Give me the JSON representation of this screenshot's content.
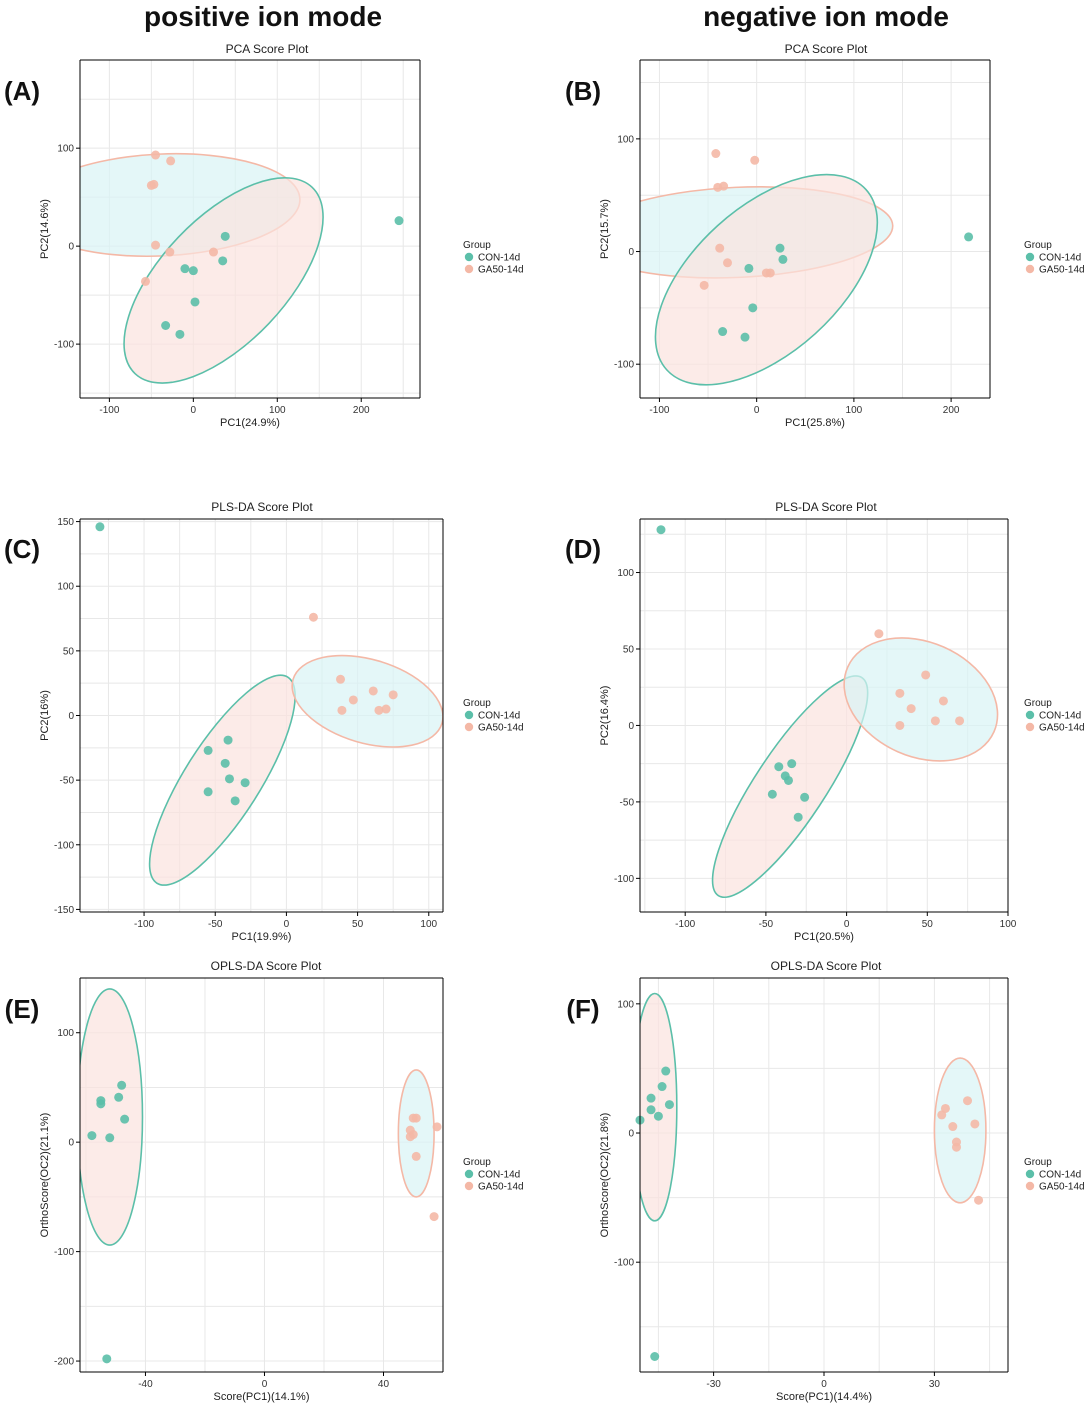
{
  "column_headers": [
    "positive ion mode",
    "negative ion mode"
  ],
  "colors": {
    "con": "#5bbfa9",
    "ga50": "#f4b8a6",
    "con_fill": "#d9f3f5",
    "ga50_fill": "#fbe3de",
    "grid": "#e8e8e8"
  },
  "chart_data": [
    {
      "type": "scatter",
      "panel_label": "(A)",
      "title": "PCA Score Plot",
      "xlabel": "PC1(24.9%)",
      "ylabel": "PC2(14.6%)",
      "xlim": [
        -135,
        270
      ],
      "ylim": [
        -155,
        190
      ],
      "xticks": [
        -100,
        0,
        100,
        200
      ],
      "yticks": [
        -100,
        0,
        100
      ],
      "legend": {
        "title": "Group",
        "entries": [
          "CON-14d",
          "GA50-14d"
        ],
        "position": "right"
      },
      "series": [
        {
          "name": "CON-14d",
          "points": [
            [
              -10,
              -23
            ],
            [
              0,
              -25
            ],
            [
              35,
              -15
            ],
            [
              38,
              10
            ],
            [
              2,
              -57
            ],
            [
              -33,
              -81
            ],
            [
              -16,
              -90
            ],
            [
              245,
              26
            ]
          ]
        },
        {
          "name": "GA50-14d",
          "points": [
            [
              -45,
              93
            ],
            [
              -27,
              87
            ],
            [
              -50,
              62
            ],
            [
              -47,
              63
            ],
            [
              -45,
              1
            ],
            [
              -28,
              -6
            ],
            [
              -57,
              -36
            ],
            [
              24,
              -6
            ]
          ]
        }
      ],
      "ellipses": [
        {
          "group": "GA50-14d",
          "fill": "CON-14d",
          "center": [
            -38,
            42
          ],
          "radius": [
            52,
            165
          ],
          "angle": 93
        },
        {
          "group": "CON-14d",
          "fill": "GA50-14d",
          "center": [
            36,
            -35
          ],
          "radius": [
            142,
            68
          ],
          "angle": 42
        }
      ]
    },
    {
      "type": "scatter",
      "panel_label": "(B)",
      "title": "PCA Score Plot",
      "xlabel": "PC1(25.8%)",
      "ylabel": "PC2(15.7%)",
      "xlim": [
        -120,
        240
      ],
      "ylim": [
        -130,
        170
      ],
      "xticks": [
        -100,
        0,
        100,
        200
      ],
      "yticks": [
        -100,
        0,
        100
      ],
      "legend": {
        "title": "Group",
        "entries": [
          "CON-14d",
          "GA50-14d"
        ],
        "position": "right"
      },
      "series": [
        {
          "name": "CON-14d",
          "points": [
            [
              -8,
              -15
            ],
            [
              24,
              3
            ],
            [
              27,
              -7
            ],
            [
              -4,
              -50
            ],
            [
              -35,
              -71
            ],
            [
              -12,
              -76
            ],
            [
              218,
              13
            ]
          ]
        },
        {
          "name": "GA50-14d",
          "points": [
            [
              -42,
              87
            ],
            [
              -2,
              81
            ],
            [
              -40,
              57
            ],
            [
              -34,
              58
            ],
            [
              -38,
              3
            ],
            [
              -30,
              -10
            ],
            [
              -54,
              -30
            ],
            [
              10,
              -19
            ],
            [
              14,
              -19
            ]
          ]
        }
      ],
      "ellipses": [
        {
          "group": "GA50-14d",
          "fill": "CON-14d",
          "center": [
            -20,
            17
          ],
          "radius": [
            40,
            160
          ],
          "angle": 93
        },
        {
          "group": "CON-14d",
          "fill": "GA50-14d",
          "center": [
            10,
            -25
          ],
          "radius": [
            130,
            68
          ],
          "angle": 38
        }
      ]
    },
    {
      "type": "scatter",
      "panel_label": "(C)",
      "title": "PLS-DA Score Plot",
      "xlabel": "PC1(19.9%)",
      "ylabel": "PC2(16%)",
      "xlim": [
        -145,
        110
      ],
      "ylim": [
        -152,
        152
      ],
      "xticks": [
        -100,
        -50,
        0,
        50,
        100
      ],
      "yticks": [
        -150,
        -100,
        -50,
        0,
        50,
        100,
        150
      ],
      "legend": {
        "title": "Group",
        "entries": [
          "CON-14d",
          "GA50-14d"
        ],
        "position": "right"
      },
      "series": [
        {
          "name": "CON-14d",
          "points": [
            [
              -131,
              146
            ],
            [
              -55,
              -27
            ],
            [
              -41,
              -19
            ],
            [
              -43,
              -37
            ],
            [
              -40,
              -49
            ],
            [
              -29,
              -52
            ],
            [
              -55,
              -59
            ],
            [
              -36,
              -66
            ]
          ]
        },
        {
          "name": "GA50-14d",
          "points": [
            [
              19,
              76
            ],
            [
              38,
              28
            ],
            [
              61,
              19
            ],
            [
              75,
              16
            ],
            [
              47,
              12
            ],
            [
              70,
              5
            ],
            [
              65,
              4
            ],
            [
              39,
              4
            ]
          ]
        }
      ],
      "ellipses": [
        {
          "group": "CON-14d",
          "fill": "GA50-14d",
          "center": [
            -45,
            -50
          ],
          "radius": [
            92,
            27
          ],
          "angle": 60
        },
        {
          "group": "GA50-14d",
          "fill": "CON-14d",
          "center": [
            57,
            11
          ],
          "radius": [
            55,
            32
          ],
          "angle": -18
        }
      ]
    },
    {
      "type": "scatter",
      "panel_label": "(D)",
      "title": "PLS-DA Score Plot",
      "xlabel": "PC1(20.5%)",
      "ylabel": "PC2(16.4%)",
      "xlim": [
        -128,
        100
      ],
      "ylim": [
        -122,
        135
      ],
      "xticks": [
        -100,
        -50,
        0,
        50,
        100
      ],
      "yticks": [
        -100,
        -50,
        0,
        50,
        100
      ],
      "legend": {
        "title": "Group",
        "entries": [
          "CON-14d",
          "GA50-14d"
        ],
        "position": "right"
      },
      "series": [
        {
          "name": "CON-14d",
          "points": [
            [
              -115,
              128
            ],
            [
              -42,
              -27
            ],
            [
              -34,
              -25
            ],
            [
              -38,
              -33
            ],
            [
              -36,
              -36
            ],
            [
              -46,
              -45
            ],
            [
              -26,
              -47
            ],
            [
              -30,
              -60
            ]
          ]
        },
        {
          "name": "GA50-14d",
          "points": [
            [
              20,
              60
            ],
            [
              49,
              33
            ],
            [
              33,
              21
            ],
            [
              60,
              16
            ],
            [
              40,
              11
            ],
            [
              55,
              3
            ],
            [
              70,
              3
            ],
            [
              33,
              0
            ]
          ]
        }
      ],
      "ellipses": [
        {
          "group": "CON-14d",
          "fill": "GA50-14d",
          "center": [
            -35,
            -40
          ],
          "radius": [
            84,
            22
          ],
          "angle": 58
        },
        {
          "group": "GA50-14d",
          "fill": "CON-14d",
          "center": [
            46,
            17
          ],
          "radius": [
            50,
            37
          ],
          "angle": -25
        }
      ]
    },
    {
      "type": "scatter",
      "panel_label": "(E)",
      "title": "OPLS-DA Score Plot",
      "xlabel": "Score(PC1)(14.1%)",
      "ylabel": "OrthoScore(OC2)(21.1%)",
      "xlim": [
        -62,
        60
      ],
      "ylim": [
        -210,
        150
      ],
      "xticks": [
        -40,
        0,
        40
      ],
      "yticks": [
        -200,
        -100,
        0,
        100
      ],
      "legend": {
        "title": "Group",
        "entries": [
          "CON-14d",
          "GA50-14d"
        ],
        "position": "right"
      },
      "series": [
        {
          "name": "CON-14d",
          "points": [
            [
              -48,
              52
            ],
            [
              -49,
              41
            ],
            [
              -55,
              38
            ],
            [
              -55,
              35
            ],
            [
              -47,
              21
            ],
            [
              -58,
              6
            ],
            [
              -52,
              4
            ],
            [
              -53,
              -198
            ]
          ]
        },
        {
          "name": "GA50-14d",
          "points": [
            [
              50,
              22
            ],
            [
              51,
              22
            ],
            [
              49,
              11
            ],
            [
              50,
              7
            ],
            [
              49,
              5
            ],
            [
              51,
              -13
            ],
            [
              58,
              14
            ],
            [
              57,
              -68
            ]
          ]
        }
      ],
      "ellipses": [
        {
          "group": "CON-14d",
          "fill": "GA50-14d",
          "center": [
            -52,
            23
          ],
          "radius": [
            11,
            117
          ],
          "angle": 0
        },
        {
          "group": "GA50-14d",
          "fill": "CON-14d",
          "center": [
            51,
            8
          ],
          "radius": [
            6,
            58
          ],
          "angle": 0
        }
      ]
    },
    {
      "type": "scatter",
      "panel_label": "(F)",
      "title": "OPLS-DA Score Plot",
      "xlabel": "Score(PC1)(14.4%)",
      "ylabel": "OrthoScore(OC2)(21.8%)",
      "xlim": [
        -50,
        50
      ],
      "ylim": [
        -185,
        120
      ],
      "xticks": [
        -30,
        0,
        30
      ],
      "yticks": [
        -100,
        0,
        100
      ],
      "legend": {
        "title": "Group",
        "entries": [
          "CON-14d",
          "GA50-14d"
        ],
        "position": "right"
      },
      "series": [
        {
          "name": "CON-14d",
          "points": [
            [
              -43,
              48
            ],
            [
              -44,
              36
            ],
            [
              -47,
              27
            ],
            [
              -42,
              22
            ],
            [
              -47,
              18
            ],
            [
              -45,
              13
            ],
            [
              -50,
              10
            ],
            [
              -46,
              -173
            ]
          ]
        },
        {
          "name": "GA50-14d",
          "points": [
            [
              39,
              25
            ],
            [
              33,
              19
            ],
            [
              32,
              14
            ],
            [
              35,
              5
            ],
            [
              41,
              7
            ],
            [
              36,
              -7
            ],
            [
              36,
              -11
            ],
            [
              42,
              -52
            ]
          ]
        }
      ],
      "ellipses": [
        {
          "group": "CON-14d",
          "fill": "GA50-14d",
          "center": [
            -46,
            20
          ],
          "radius": [
            6,
            88
          ],
          "angle": 0
        },
        {
          "group": "GA50-14d",
          "fill": "CON-14d",
          "center": [
            37,
            2
          ],
          "radius": [
            7,
            56
          ],
          "angle": 0
        }
      ]
    }
  ]
}
